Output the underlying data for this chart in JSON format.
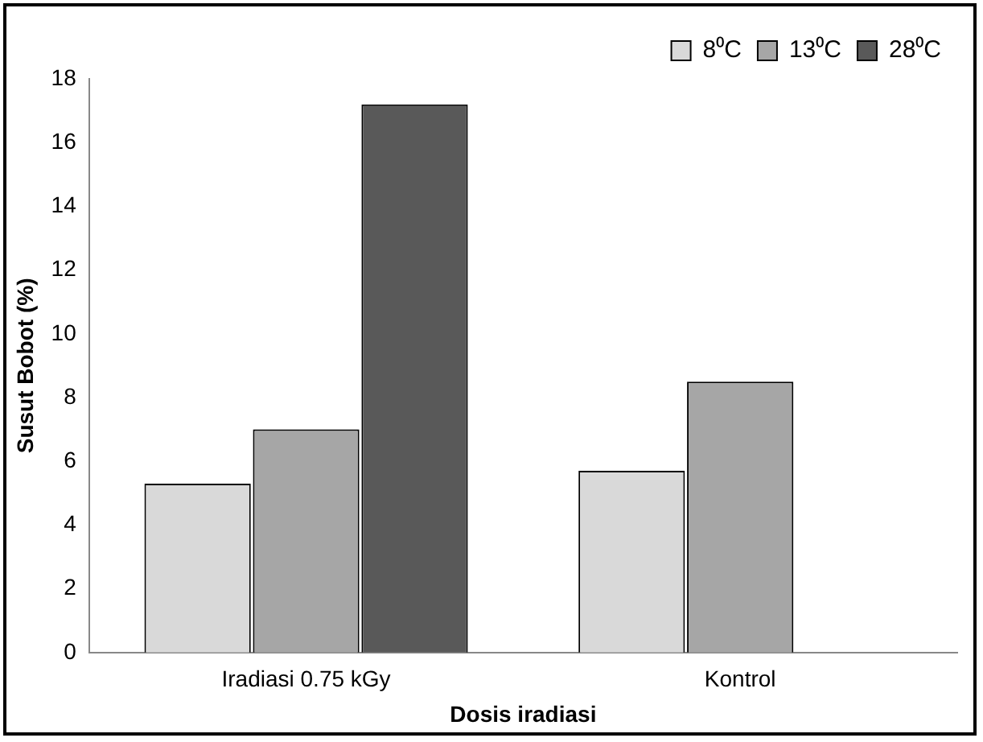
{
  "chart_data": {
    "type": "bar",
    "xlabel": "Dosis iradiasi",
    "ylabel": "Susut Bobot (%)",
    "categories": [
      "Iradiasi 0.75 kGy",
      "Kontrol"
    ],
    "series": [
      {
        "name": "8⁰C",
        "color": "#d9d9d9",
        "values": [
          5.3,
          5.7
        ]
      },
      {
        "name": "13⁰C",
        "color": "#a6a6a6",
        "values": [
          7.0,
          8.5
        ]
      },
      {
        "name": "28⁰C",
        "color": "#595959",
        "values": [
          17.2,
          null
        ]
      }
    ],
    "ylim": [
      0,
      18
    ],
    "yticks": [
      0,
      2,
      4,
      6,
      8,
      10,
      12,
      14,
      16,
      18
    ],
    "grid": false,
    "legend": "top right"
  }
}
